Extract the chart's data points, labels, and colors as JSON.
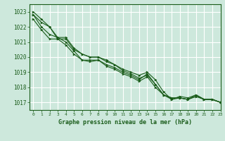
{
  "background_color": "#cde8dc",
  "grid_color": "#ffffff",
  "line_color": "#1a5c1a",
  "marker_color": "#1a5c1a",
  "xlabel": "Graphe pression niveau de la mer (hPa)",
  "xlim": [
    -0.5,
    23
  ],
  "ylim": [
    1016.5,
    1023.5
  ],
  "yticks": [
    1017,
    1018,
    1019,
    1020,
    1021,
    1022,
    1023
  ],
  "xticks": [
    0,
    1,
    2,
    3,
    4,
    5,
    6,
    7,
    8,
    9,
    10,
    11,
    12,
    13,
    14,
    15,
    16,
    17,
    18,
    19,
    20,
    21,
    22,
    23
  ],
  "series": [
    [
      1023.0,
      1022.5,
      1022.0,
      1021.2,
      1021.2,
      1020.5,
      1020.2,
      1020.0,
      1020.0,
      1019.8,
      1019.5,
      1019.2,
      1019.0,
      1018.8,
      1019.0,
      1018.5,
      1017.7,
      1017.2,
      1017.3,
      1017.2,
      1017.5,
      1017.2,
      1017.2,
      1017.0
    ],
    [
      1022.8,
      1022.3,
      1022.0,
      1021.3,
      1021.3,
      1020.6,
      1020.2,
      1020.0,
      1020.0,
      1019.7,
      1019.5,
      1019.1,
      1018.9,
      1018.6,
      1018.8,
      1018.2,
      1017.5,
      1017.2,
      1017.4,
      1017.3,
      1017.5,
      1017.2,
      1017.2,
      1017.0
    ],
    [
      1022.8,
      1022.0,
      1021.5,
      1021.3,
      1021.0,
      1020.4,
      1019.8,
      1019.8,
      1019.8,
      1019.5,
      1019.3,
      1019.0,
      1018.8,
      1018.5,
      1018.9,
      1018.2,
      1017.5,
      1017.3,
      1017.3,
      1017.2,
      1017.4,
      1017.2,
      1017.2,
      1017.0
    ],
    [
      1022.5,
      1021.8,
      1021.2,
      1021.2,
      1020.8,
      1020.2,
      1019.8,
      1019.7,
      1019.8,
      1019.4,
      1019.2,
      1018.9,
      1018.7,
      1018.4,
      1018.7,
      1018.0,
      1017.5,
      1017.3,
      1017.3,
      1017.2,
      1017.4,
      1017.2,
      1017.2,
      1017.0
    ]
  ],
  "figsize": [
    3.2,
    2.0
  ],
  "dpi": 100
}
